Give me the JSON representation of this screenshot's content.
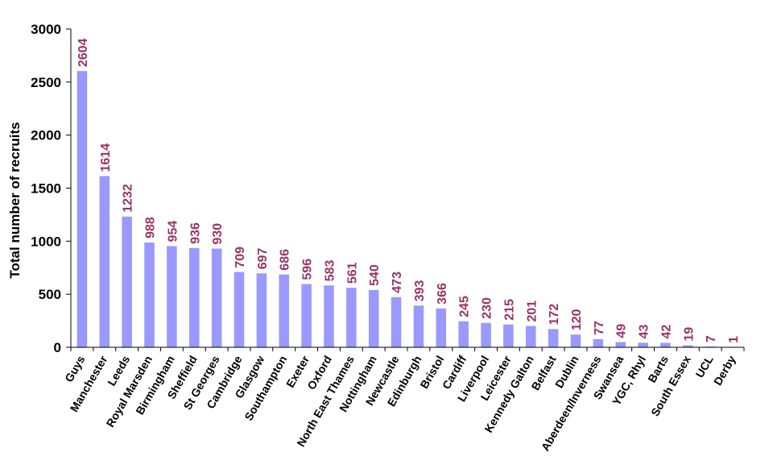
{
  "chart_data": {
    "type": "bar",
    "title": "",
    "xlabel": "",
    "ylabel": "Total number of recruits",
    "ylim": [
      0,
      3000
    ],
    "yticks": [
      0,
      500,
      1000,
      1500,
      2000,
      2500,
      3000
    ],
    "grid": false,
    "legend": "none",
    "bar_color": "#9999ff",
    "label_color": "#993366",
    "categories": [
      "Guys",
      "Manchester",
      "Leeds",
      "Royal Marsden",
      "Birmingham",
      "Sheffield",
      "St Georges",
      "Cambridge",
      "Glasgow",
      "Southampton",
      "Exeter",
      "Oxford",
      "North East Thames",
      "Nottingham",
      "Newcastle",
      "Edinburgh",
      "Bristol",
      "Cardiff",
      "Liverpool",
      "Leicester",
      "Kennedy Galton",
      "Belfast",
      "Dublin",
      "Aberdeen/Inverness",
      "Swansea",
      "YGC, Rhyl",
      "Barts",
      "South Essex",
      "UCL",
      "Derby"
    ],
    "values": [
      2604,
      1614,
      1232,
      988,
      954,
      936,
      930,
      709,
      697,
      686,
      596,
      583,
      561,
      540,
      473,
      393,
      366,
      245,
      230,
      215,
      201,
      172,
      120,
      77,
      49,
      43,
      42,
      19,
      7,
      1
    ]
  }
}
